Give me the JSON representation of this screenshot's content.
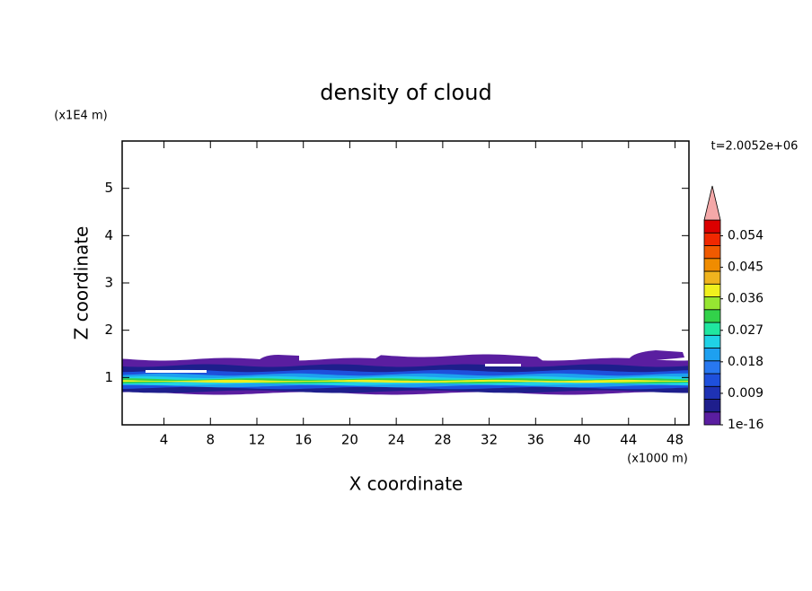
{
  "chart_data": {
    "type": "contour",
    "title": "density of cloud",
    "xlabel": "X coordinate",
    "ylabel": "Z coordinate",
    "xunit": "(x1000 m)",
    "yunit": "(x1E4 m)",
    "time_label": "t=2.0052e+06",
    "xlim": [
      0.4,
      49.2
    ],
    "xticks": [
      4,
      8,
      12,
      16,
      20,
      24,
      28,
      32,
      36,
      40,
      44,
      48
    ],
    "ylim": [
      0,
      6
    ],
    "yticks": [
      1,
      2,
      3,
      4,
      5
    ],
    "clim": [
      0,
      0.0585
    ],
    "cticks": [
      {
        "value": 1e-16,
        "label": "1e-16"
      },
      0.009,
      0.018,
      0.027,
      0.036,
      0.045,
      0.054
    ],
    "colors": [
      "#5a1ea0",
      "#1e1e8c",
      "#1e32b4",
      "#1e50dc",
      "#2878f0",
      "#1ea0f0",
      "#20d2e6",
      "#20e6a0",
      "#32d24a",
      "#96e632",
      "#f0f01e",
      "#f0b41e",
      "#f08c00",
      "#f05a00",
      "#f02800",
      "#dc0000"
    ],
    "over_color": "#f4a8a8"
  }
}
